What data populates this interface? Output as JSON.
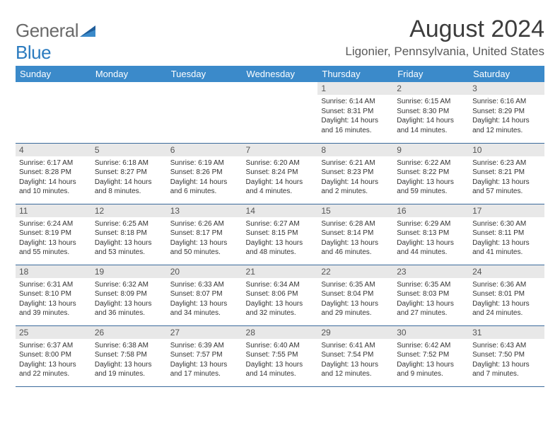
{
  "logo": {
    "part1": "General",
    "part2": "Blue"
  },
  "title": "August 2024",
  "location": "Ligonier, Pennsylvania, United States",
  "colors": {
    "header_bg": "#3b8aca",
    "header_text": "#ffffff",
    "daynum_bg": "#e8e8e8",
    "border": "#3b6a9c",
    "title": "#3d3d3d",
    "subtitle": "#5a5a5a",
    "logo_gray": "#6a6a6a",
    "logo_blue": "#2b7bbf"
  },
  "weekdays": [
    "Sunday",
    "Monday",
    "Tuesday",
    "Wednesday",
    "Thursday",
    "Friday",
    "Saturday"
  ],
  "structure": "calendar",
  "first_weekday_index": 4,
  "days": [
    {
      "n": 1,
      "sr": "6:14 AM",
      "ss": "8:31 PM",
      "dl": "14 hours and 16 minutes."
    },
    {
      "n": 2,
      "sr": "6:15 AM",
      "ss": "8:30 PM",
      "dl": "14 hours and 14 minutes."
    },
    {
      "n": 3,
      "sr": "6:16 AM",
      "ss": "8:29 PM",
      "dl": "14 hours and 12 minutes."
    },
    {
      "n": 4,
      "sr": "6:17 AM",
      "ss": "8:28 PM",
      "dl": "14 hours and 10 minutes."
    },
    {
      "n": 5,
      "sr": "6:18 AM",
      "ss": "8:27 PM",
      "dl": "14 hours and 8 minutes."
    },
    {
      "n": 6,
      "sr": "6:19 AM",
      "ss": "8:26 PM",
      "dl": "14 hours and 6 minutes."
    },
    {
      "n": 7,
      "sr": "6:20 AM",
      "ss": "8:24 PM",
      "dl": "14 hours and 4 minutes."
    },
    {
      "n": 8,
      "sr": "6:21 AM",
      "ss": "8:23 PM",
      "dl": "14 hours and 2 minutes."
    },
    {
      "n": 9,
      "sr": "6:22 AM",
      "ss": "8:22 PM",
      "dl": "13 hours and 59 minutes."
    },
    {
      "n": 10,
      "sr": "6:23 AM",
      "ss": "8:21 PM",
      "dl": "13 hours and 57 minutes."
    },
    {
      "n": 11,
      "sr": "6:24 AM",
      "ss": "8:19 PM",
      "dl": "13 hours and 55 minutes."
    },
    {
      "n": 12,
      "sr": "6:25 AM",
      "ss": "8:18 PM",
      "dl": "13 hours and 53 minutes."
    },
    {
      "n": 13,
      "sr": "6:26 AM",
      "ss": "8:17 PM",
      "dl": "13 hours and 50 minutes."
    },
    {
      "n": 14,
      "sr": "6:27 AM",
      "ss": "8:15 PM",
      "dl": "13 hours and 48 minutes."
    },
    {
      "n": 15,
      "sr": "6:28 AM",
      "ss": "8:14 PM",
      "dl": "13 hours and 46 minutes."
    },
    {
      "n": 16,
      "sr": "6:29 AM",
      "ss": "8:13 PM",
      "dl": "13 hours and 44 minutes."
    },
    {
      "n": 17,
      "sr": "6:30 AM",
      "ss": "8:11 PM",
      "dl": "13 hours and 41 minutes."
    },
    {
      "n": 18,
      "sr": "6:31 AM",
      "ss": "8:10 PM",
      "dl": "13 hours and 39 minutes."
    },
    {
      "n": 19,
      "sr": "6:32 AM",
      "ss": "8:09 PM",
      "dl": "13 hours and 36 minutes."
    },
    {
      "n": 20,
      "sr": "6:33 AM",
      "ss": "8:07 PM",
      "dl": "13 hours and 34 minutes."
    },
    {
      "n": 21,
      "sr": "6:34 AM",
      "ss": "8:06 PM",
      "dl": "13 hours and 32 minutes."
    },
    {
      "n": 22,
      "sr": "6:35 AM",
      "ss": "8:04 PM",
      "dl": "13 hours and 29 minutes."
    },
    {
      "n": 23,
      "sr": "6:35 AM",
      "ss": "8:03 PM",
      "dl": "13 hours and 27 minutes."
    },
    {
      "n": 24,
      "sr": "6:36 AM",
      "ss": "8:01 PM",
      "dl": "13 hours and 24 minutes."
    },
    {
      "n": 25,
      "sr": "6:37 AM",
      "ss": "8:00 PM",
      "dl": "13 hours and 22 minutes."
    },
    {
      "n": 26,
      "sr": "6:38 AM",
      "ss": "7:58 PM",
      "dl": "13 hours and 19 minutes."
    },
    {
      "n": 27,
      "sr": "6:39 AM",
      "ss": "7:57 PM",
      "dl": "13 hours and 17 minutes."
    },
    {
      "n": 28,
      "sr": "6:40 AM",
      "ss": "7:55 PM",
      "dl": "13 hours and 14 minutes."
    },
    {
      "n": 29,
      "sr": "6:41 AM",
      "ss": "7:54 PM",
      "dl": "13 hours and 12 minutes."
    },
    {
      "n": 30,
      "sr": "6:42 AM",
      "ss": "7:52 PM",
      "dl": "13 hours and 9 minutes."
    },
    {
      "n": 31,
      "sr": "6:43 AM",
      "ss": "7:50 PM",
      "dl": "13 hours and 7 minutes."
    }
  ],
  "labels": {
    "sunrise": "Sunrise: ",
    "sunset": "Sunset: ",
    "daylight": "Daylight: "
  }
}
